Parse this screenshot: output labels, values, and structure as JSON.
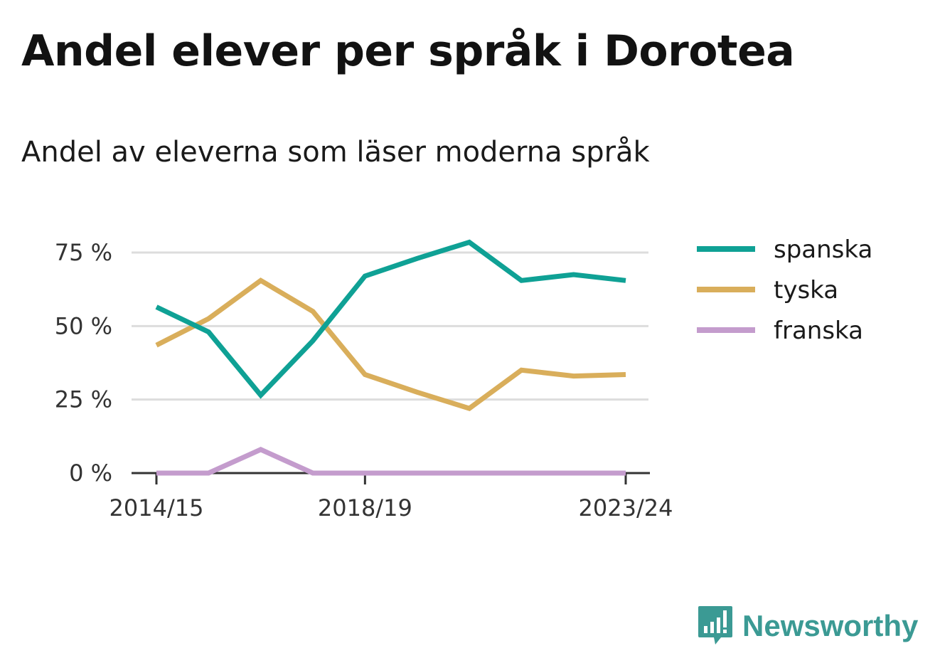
{
  "header": {
    "title": "Andel elever per språk i Dorotea",
    "subtitle": "Andel av eleverna som läser moderna språk"
  },
  "brand": {
    "name": "Newsworthy",
    "icon": "newsworthy-logo-icon",
    "color": "#3b9a94"
  },
  "chart_data": {
    "type": "line",
    "x": [
      "2014/15",
      "2015/16",
      "2016/17",
      "2017/18",
      "2018/19",
      "2019/20",
      "2020/21",
      "2021/22",
      "2022/23",
      "2023/24"
    ],
    "x_tick_labels": [
      "2014/15",
      "2018/19",
      "2023/24"
    ],
    "y_ticks": [
      0,
      25,
      50,
      75
    ],
    "y_tick_labels": [
      "0 %",
      "25 %",
      "50 %",
      "75 %"
    ],
    "ylim": [
      0,
      80
    ],
    "grid": true,
    "legend_position": "right",
    "series": [
      {
        "name": "spanska",
        "color": "#0fa195",
        "values": [
          56.5,
          48,
          26.5,
          45,
          67,
          73,
          78.5,
          65.5,
          67.5,
          65.5
        ]
      },
      {
        "name": "tyska",
        "color": "#d9ae5b",
        "values": [
          43.5,
          52.5,
          65.5,
          55,
          33.5,
          27.5,
          22,
          35,
          33,
          33.5
        ]
      },
      {
        "name": "franska",
        "color": "#c49ccd",
        "values": [
          0,
          0,
          8,
          0,
          0,
          0,
          0,
          0,
          0,
          0
        ]
      }
    ]
  }
}
